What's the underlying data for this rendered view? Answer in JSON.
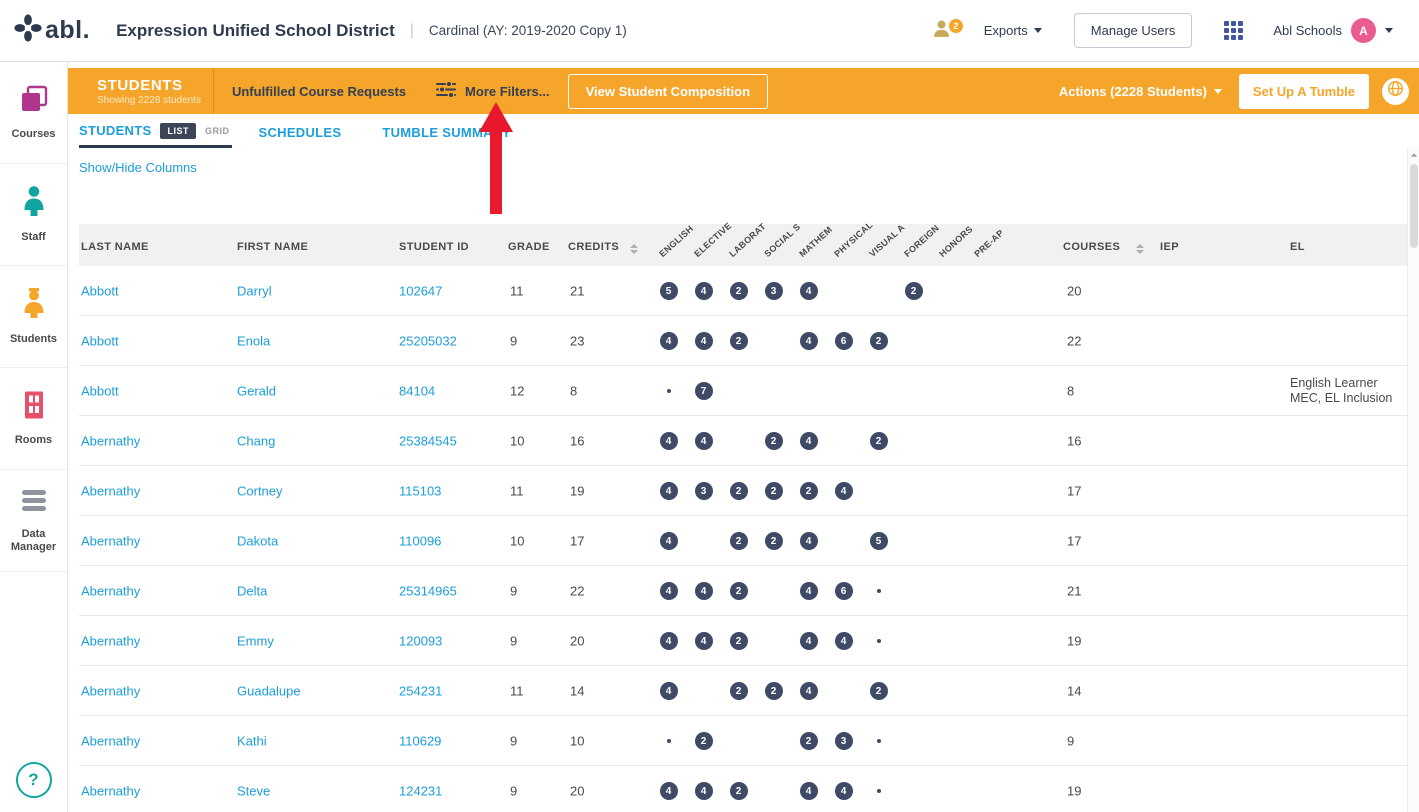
{
  "header": {
    "logo_text": "abl.",
    "district": "Expression Unified School District",
    "separator": "|",
    "context": "Cardinal (AY: 2019-2020 Copy 1)",
    "notification_count": "2",
    "exports_label": "Exports",
    "manage_users_label": "Manage Users",
    "account_name": "Abl Schools",
    "avatar_letter": "A"
  },
  "sidebar": {
    "items": [
      {
        "label": "Courses"
      },
      {
        "label": "Staff"
      },
      {
        "label": "Students"
      },
      {
        "label": "Rooms"
      },
      {
        "label": "Data Manager"
      }
    ],
    "help_label": "?"
  },
  "toolbar": {
    "title": "STUDENTS",
    "subtitle": "Showing 2228 students",
    "unfulfilled_label": "Unfulfilled Course Requests",
    "more_filters_label": "More Filters...",
    "view_composition_label": "View Student Composition",
    "actions_label": "Actions (2228 Students)",
    "setup_tumble_label": "Set Up A Tumble"
  },
  "tabs": {
    "students": "STUDENTS",
    "list": "LIST",
    "grid": "GRID",
    "schedules": "SCHEDULES",
    "tumble": "TUMBLE SUMMARY"
  },
  "show_hide_label": "Show/Hide Columns",
  "table": {
    "columns": [
      "LAST NAME",
      "FIRST NAME",
      "STUDENT ID",
      "GRADE",
      "CREDITS"
    ],
    "subject_columns": [
      "ENGLISH",
      "ELECTIVE",
      "LABORAT",
      "SOCIAL S",
      "MATHEM",
      "PHYSICAL",
      "VISUAL A",
      "FOREIGN",
      "HONORS",
      "PRE-AP"
    ],
    "tail_columns": [
      "COURSES",
      "IEP",
      "EL"
    ],
    "rows": [
      {
        "last": "Abbott",
        "first": "Darryl",
        "id": "102647",
        "grade": "11",
        "credits": "21",
        "subjects": [
          5,
          4,
          2,
          3,
          4,
          null,
          null,
          2,
          null,
          null
        ],
        "courses": "20",
        "iep": "",
        "el": ""
      },
      {
        "last": "Abbott",
        "first": "Enola",
        "id": "25205032",
        "grade": "9",
        "credits": "23",
        "subjects": [
          4,
          4,
          2,
          null,
          4,
          6,
          2,
          null,
          null,
          null
        ],
        "courses": "22",
        "iep": "",
        "el": ""
      },
      {
        "last": "Abbott",
        "first": "Gerald",
        "id": "84104",
        "grade": "12",
        "credits": "8",
        "subjects": [
          "•",
          7,
          null,
          null,
          null,
          null,
          null,
          null,
          null,
          null
        ],
        "courses": "8",
        "iep": "",
        "el": "English Learner\nMEC, EL Inclusion"
      },
      {
        "last": "Abernathy",
        "first": "Chang",
        "id": "25384545",
        "grade": "10",
        "credits": "16",
        "subjects": [
          4,
          4,
          null,
          2,
          4,
          null,
          2,
          null,
          null,
          null
        ],
        "courses": "16",
        "iep": "",
        "el": ""
      },
      {
        "last": "Abernathy",
        "first": "Cortney",
        "id": "115103",
        "grade": "11",
        "credits": "19",
        "subjects": [
          4,
          3,
          2,
          2,
          2,
          4,
          null,
          null,
          null,
          null
        ],
        "courses": "17",
        "iep": "",
        "el": ""
      },
      {
        "last": "Abernathy",
        "first": "Dakota",
        "id": "110096",
        "grade": "10",
        "credits": "17",
        "subjects": [
          4,
          null,
          2,
          2,
          4,
          null,
          5,
          null,
          null,
          null
        ],
        "courses": "17",
        "iep": "",
        "el": ""
      },
      {
        "last": "Abernathy",
        "first": "Delta",
        "id": "25314965",
        "grade": "9",
        "credits": "22",
        "subjects": [
          4,
          4,
          2,
          null,
          4,
          6,
          "•",
          null,
          null,
          null
        ],
        "courses": "21",
        "iep": "",
        "el": ""
      },
      {
        "last": "Abernathy",
        "first": "Emmy",
        "id": "120093",
        "grade": "9",
        "credits": "20",
        "subjects": [
          4,
          4,
          2,
          null,
          4,
          4,
          "•",
          null,
          null,
          null
        ],
        "courses": "19",
        "iep": "",
        "el": ""
      },
      {
        "last": "Abernathy",
        "first": "Guadalupe",
        "id": "254231",
        "grade": "11",
        "credits": "14",
        "subjects": [
          4,
          null,
          2,
          2,
          4,
          null,
          2,
          null,
          null,
          null
        ],
        "courses": "14",
        "iep": "",
        "el": ""
      },
      {
        "last": "Abernathy",
        "first": "Kathi",
        "id": "110629",
        "grade": "9",
        "credits": "10",
        "subjects": [
          "•",
          2,
          null,
          null,
          2,
          3,
          "•",
          null,
          null,
          null
        ],
        "courses": "9",
        "iep": "",
        "el": ""
      },
      {
        "last": "Abernathy",
        "first": "Steve",
        "id": "124231",
        "grade": "9",
        "credits": "20",
        "subjects": [
          4,
          4,
          2,
          null,
          4,
          4,
          "•",
          null,
          null,
          null
        ],
        "courses": "19",
        "iep": "",
        "el": ""
      }
    ]
  },
  "icons": [
    "flower-logo-icon",
    "person-notifications-icon",
    "apps-grid-icon",
    "caret-down-icon",
    "courses-icon",
    "staff-icon",
    "students-icon",
    "rooms-icon",
    "data-manager-icon",
    "question-icon",
    "sliders-filter-icon",
    "globe-icon",
    "sort-icon",
    "annotation-arrow"
  ],
  "colors": {
    "toolbar_orange": "#F5A529",
    "link_blue": "#1C9ED9",
    "navy_text": "#2E3A4E",
    "badge_navy": "#3E4A66",
    "arrow_red": "#E8192C",
    "avatar_pink": "#EA5C8F",
    "staff_teal": "#12A5A0",
    "courses_magenta": "#B0368C",
    "rooms_red": "#E8506A"
  }
}
